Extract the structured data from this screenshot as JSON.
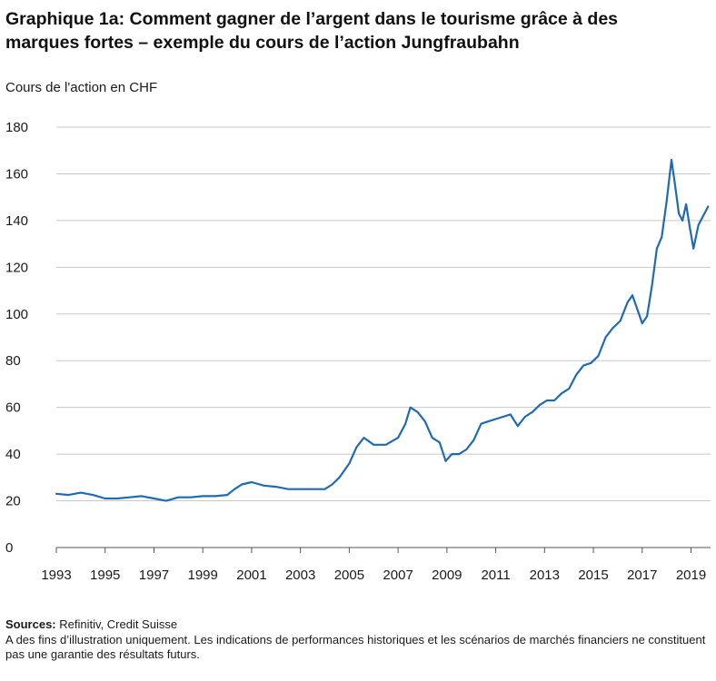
{
  "header": {
    "title_line1": "Graphique 1a: Comment gagner de l’argent dans le tourisme grâce à des",
    "title_line2": "marques fortes – exemple du cours de l’action Jungfraubahn"
  },
  "colors": {
    "line": "#1f6bb3",
    "grid": "#c8c8c8",
    "axis": "#555555"
  },
  "chart_data": {
    "type": "line",
    "title": "Graphique 1a: Comment gagner de l’argent dans le tourisme grâce à des marques fortes – exemple du cours de l’action Jungfraubahn",
    "ylabel": "Cours de l'action en CHF",
    "xlabel": "",
    "ylim": [
      0,
      180
    ],
    "xlim": [
      1993,
      2019.8
    ],
    "yticks": [
      0,
      20,
      40,
      60,
      80,
      100,
      120,
      140,
      160,
      180
    ],
    "xticks": [
      "1993",
      "1995",
      "1997",
      "1999",
      "2001",
      "2003",
      "2005",
      "2007",
      "2009",
      "2011",
      "2013",
      "2015",
      "2017",
      "2019"
    ],
    "grid": true,
    "legend": "none",
    "series": [
      {
        "x": [
          1993.0,
          1993.5,
          1994.0,
          1994.5,
          1995.0,
          1995.5,
          1996.0,
          1996.5,
          1997.0,
          1997.5,
          1998.0,
          1998.5,
          1999.0,
          1999.5,
          2000.0,
          2000.3,
          2000.6,
          2001.0,
          2001.5,
          2002.0,
          2002.5,
          2003.0,
          2003.5,
          2004.0,
          2004.3,
          2004.6,
          2005.0,
          2005.3,
          2005.6,
          2006.0,
          2006.5,
          2007.0,
          2007.3,
          2007.5,
          2007.8,
          2008.1,
          2008.4,
          2008.7,
          2008.95,
          2009.2,
          2009.5,
          2009.8,
          2010.1,
          2010.4,
          2010.7,
          2011.0,
          2011.3,
          2011.6,
          2011.9,
          2012.2,
          2012.5,
          2012.8,
          2013.1,
          2013.4,
          2013.7,
          2014.0,
          2014.3,
          2014.6,
          2014.9,
          2015.2,
          2015.5,
          2015.8,
          2016.1,
          2016.4,
          2016.6,
          2016.8,
          2017.0,
          2017.2,
          2017.4,
          2017.6,
          2017.8,
          2018.0,
          2018.2,
          2018.35,
          2018.5,
          2018.65,
          2018.8,
          2018.95,
          2019.1,
          2019.3,
          2019.5,
          2019.7
        ],
        "values": [
          23,
          22.5,
          23.5,
          22.5,
          21,
          21,
          21.5,
          22,
          21,
          20,
          21.5,
          21.5,
          22,
          22,
          22.5,
          25,
          27,
          28,
          26.5,
          26,
          25,
          25,
          25,
          25,
          27,
          30,
          36,
          43,
          47,
          44,
          44,
          47,
          53,
          60,
          58,
          54,
          47,
          45,
          37,
          40,
          40,
          42,
          46,
          53,
          54,
          55,
          56,
          57,
          52,
          56,
          58,
          61,
          63,
          63,
          66,
          68,
          74,
          78,
          79,
          82,
          90,
          94,
          97,
          105,
          108,
          102,
          96,
          99,
          112,
          128,
          133,
          148,
          166,
          155,
          143,
          140,
          147,
          137,
          128,
          138,
          142,
          146
        ]
      }
    ]
  },
  "footer": {
    "sources_label": "Sources:",
    "sources_text": " Refinitiv, Credit Suisse",
    "disclaimer": "A des fins d’illustration uniquement. Les indications de performances historiques et les scénarios de marchés financiers ne constituent pas une garantie des résultats futurs."
  }
}
